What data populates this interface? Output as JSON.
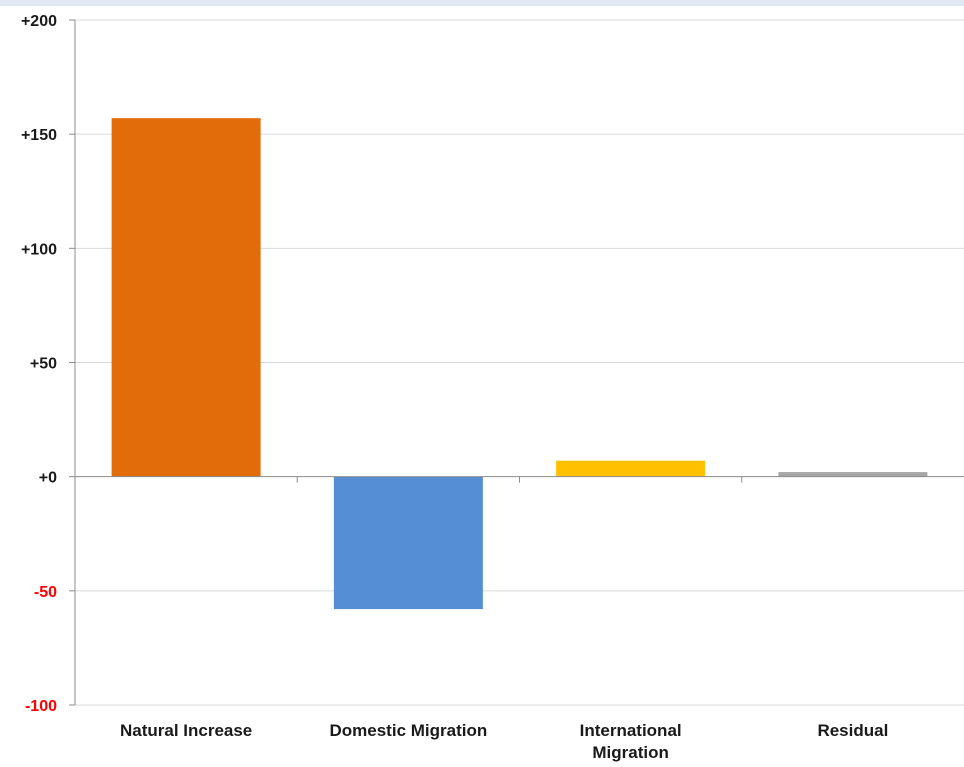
{
  "chart_data": {
    "type": "bar",
    "categories": [
      "Natural Increase",
      "Domestic Migration",
      "International Migration",
      "Residual"
    ],
    "category_label_lines": [
      [
        "Natural Increase"
      ],
      [
        "Domestic Migration"
      ],
      [
        "International",
        "Migration"
      ],
      [
        "Residual"
      ]
    ],
    "values": [
      157,
      -58,
      7,
      2
    ],
    "colors": [
      "#e36c0a",
      "#558ed5",
      "#ffc000",
      "#a6a6a6"
    ],
    "yticks": [
      200,
      150,
      100,
      50,
      0,
      -50,
      -100
    ],
    "ytick_labels": [
      "+200",
      "+150",
      "+100",
      "+50",
      "+0",
      "-50",
      "-100"
    ],
    "ytick_colors": [
      "#1a1a1a",
      "#1a1a1a",
      "#1a1a1a",
      "#1a1a1a",
      "#1a1a1a",
      "#ff0000",
      "#ff0000"
    ],
    "ylim": [
      -100,
      200
    ],
    "grid": true,
    "title": "",
    "xlabel": "",
    "ylabel": ""
  }
}
